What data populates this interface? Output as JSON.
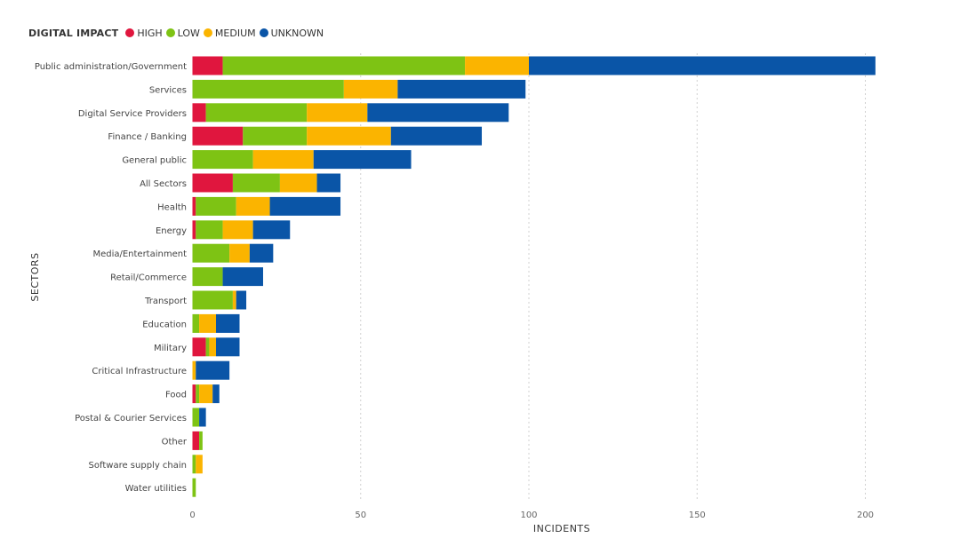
{
  "legend": {
    "title": "DIGITAL IMPACT",
    "items": [
      {
        "label": "HIGH",
        "color": "#e0163e"
      },
      {
        "label": "LOW",
        "color": "#7ec314"
      },
      {
        "label": "MEDIUM",
        "color": "#fbb400"
      },
      {
        "label": "UNKNOWN",
        "color": "#0a55a7"
      }
    ]
  },
  "chart_data": {
    "type": "bar",
    "orientation": "horizontal",
    "stacked": true,
    "xlabel": "INCIDENTS",
    "ylabel": "SECTORS",
    "xlim": [
      0,
      205
    ],
    "xticks": [
      0,
      50,
      100,
      150,
      200
    ],
    "grid": "vertical-dotted",
    "legend_position": "top-left",
    "categories": [
      "Public administration/Government",
      "Services",
      "Digital Service Providers",
      "Finance / Banking",
      "General public",
      "All Sectors",
      "Health",
      "Energy",
      "Media/Entertainment",
      "Retail/Commerce",
      "Transport",
      "Education",
      "Military",
      "Critical Infrastructure",
      "Food",
      "Postal & Courier Services",
      "Other",
      "Software supply chain",
      "Water utilities"
    ],
    "series": [
      {
        "name": "HIGH",
        "color": "#e0163e",
        "values": [
          9,
          0,
          4,
          15,
          0,
          12,
          1,
          1,
          0,
          0,
          0,
          0,
          4,
          0,
          1,
          0,
          2,
          0,
          0
        ]
      },
      {
        "name": "LOW",
        "color": "#7ec314",
        "values": [
          72,
          45,
          30,
          19,
          18,
          14,
          12,
          8,
          11,
          9,
          12,
          2,
          1,
          0,
          1,
          2,
          1,
          1,
          1
        ]
      },
      {
        "name": "MEDIUM",
        "color": "#fbb400",
        "values": [
          19,
          16,
          18,
          25,
          18,
          11,
          10,
          9,
          6,
          0,
          1,
          5,
          2,
          1,
          4,
          0,
          0,
          2,
          0
        ]
      },
      {
        "name": "UNKNOWN",
        "color": "#0a55a7",
        "values": [
          103,
          38,
          42,
          27,
          29,
          7,
          21,
          11,
          7,
          12,
          3,
          7,
          7,
          10,
          2,
          2,
          0,
          0,
          0
        ]
      }
    ]
  }
}
